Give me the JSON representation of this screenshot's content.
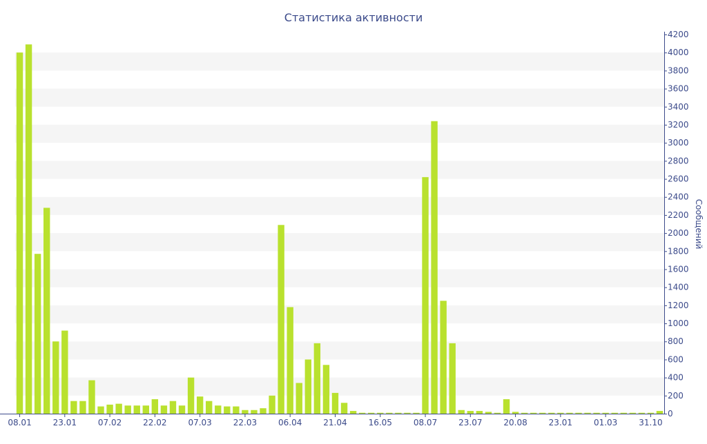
{
  "colors": {
    "bar": "#b9e12e",
    "band": "#f5f5f5",
    "axis": "#3b4a8a",
    "text": "#3b4a8a"
  },
  "chart_data": {
    "type": "bar",
    "title": "Статистика активности",
    "xlabel": "",
    "ylabel": "Сообщений",
    "ylim": [
      0,
      4200
    ],
    "yticks": [
      0,
      200,
      400,
      600,
      800,
      1000,
      1200,
      1400,
      1600,
      1800,
      2000,
      2200,
      2400,
      2600,
      2800,
      3000,
      3200,
      3400,
      3600,
      3800,
      4000,
      4200
    ],
    "y_axis_side": "right",
    "grid": "alternating horizontal bands",
    "legend": "none",
    "x_tick_labels": [
      {
        "index": 0,
        "label": "08.01"
      },
      {
        "index": 5,
        "label": "23.01"
      },
      {
        "index": 10,
        "label": "07.02"
      },
      {
        "index": 15,
        "label": "22.02"
      },
      {
        "index": 20,
        "label": "07.03"
      },
      {
        "index": 25,
        "label": "22.03"
      },
      {
        "index": 30,
        "label": "06.04"
      },
      {
        "index": 35,
        "label": "21.04"
      },
      {
        "index": 40,
        "label": "16.05"
      },
      {
        "index": 45,
        "label": "08.07"
      },
      {
        "index": 50,
        "label": "23.07"
      },
      {
        "index": 55,
        "label": "20.08"
      },
      {
        "index": 60,
        "label": "23.01"
      },
      {
        "index": 65,
        "label": "01.03"
      },
      {
        "index": 70,
        "label": "31.10"
      }
    ],
    "values": [
      4000,
      4090,
      1770,
      2280,
      800,
      920,
      140,
      140,
      370,
      80,
      100,
      110,
      90,
      90,
      90,
      160,
      90,
      140,
      90,
      400,
      190,
      140,
      90,
      80,
      80,
      40,
      40,
      60,
      200,
      2090,
      1180,
      340,
      600,
      780,
      540,
      230,
      120,
      30,
      10,
      10,
      10,
      10,
      10,
      10,
      10,
      2620,
      3240,
      1250,
      780,
      40,
      30,
      30,
      20,
      10,
      160,
      20,
      10,
      10,
      10,
      10,
      10,
      10,
      10,
      10,
      10,
      10,
      10,
      10,
      10,
      10,
      10,
      30
    ]
  }
}
